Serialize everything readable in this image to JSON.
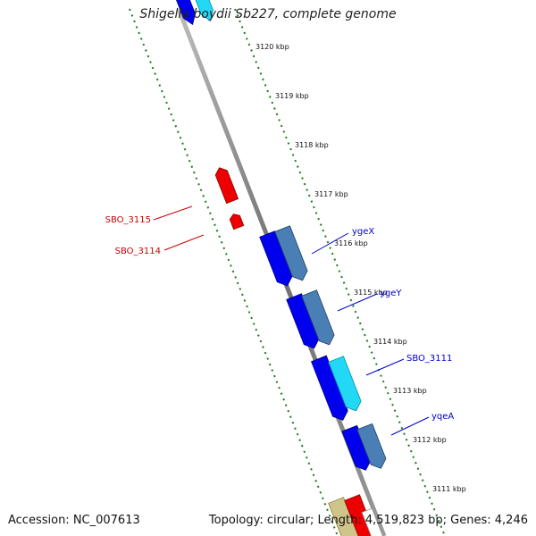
{
  "title": "Shigella boydii Sb227, complete genome",
  "footer": {
    "accession": "Accession: NC_007613",
    "summary": "Topology: circular; Length: 4,519,823 bp; Genes: 4,246"
  },
  "ticks": [
    "3120 kbp",
    "3119 kbp",
    "3118 kbp",
    "3117 kbp",
    "3116 kbp",
    "3115 kbp",
    "3114 kbp",
    "3113 kbp",
    "3112 kbp",
    "3111 kbp"
  ],
  "genes": [
    {
      "label": "yqeA",
      "color": "#0000cc"
    },
    {
      "label": "SBO_3111",
      "color": "#0000cc"
    },
    {
      "label": "ygeY",
      "color": "#0000cc"
    },
    {
      "label": "ygeX",
      "color": "#0000cc"
    },
    {
      "label": "SBO_3114",
      "color": "#cc0000"
    },
    {
      "label": "SBO_3115",
      "color": "#cc0000"
    }
  ],
  "colors": {
    "forward_blue": "#0000ee",
    "forward_steel": "#4a7fb5",
    "forward_cyan": "#22d8f5",
    "reverse_red": "#ee0000",
    "olive": "#cfc48a",
    "backbone": "#808080",
    "scale_green": "#1a7a1a"
  }
}
